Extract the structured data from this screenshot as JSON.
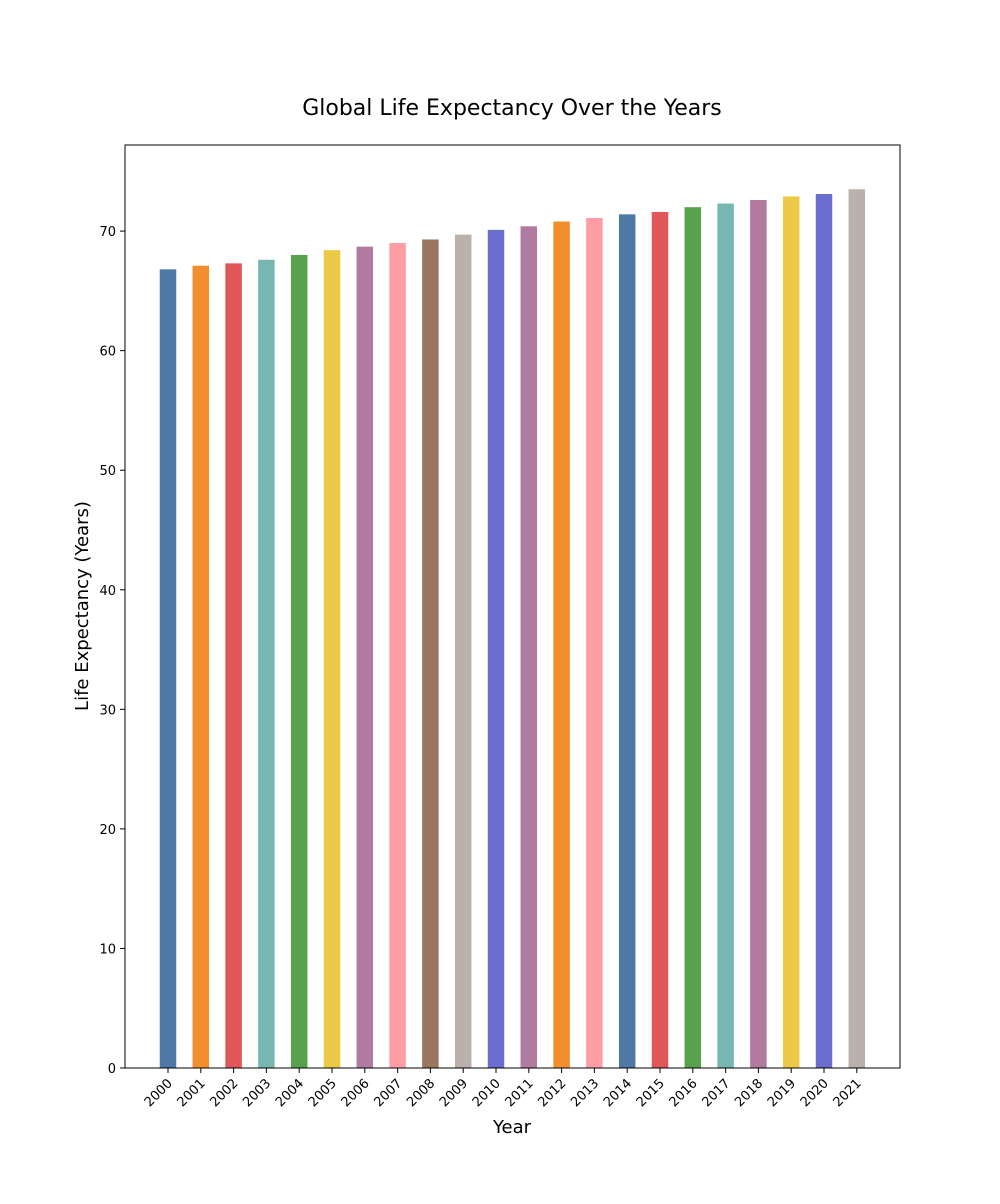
{
  "chart_data": {
    "type": "bar",
    "title": "Global Life Expectancy Over the Years",
    "xlabel": "Year",
    "ylabel": "Life Expectancy (Years)",
    "categories": [
      "2000",
      "2001",
      "2002",
      "2003",
      "2004",
      "2005",
      "2006",
      "2007",
      "2008",
      "2009",
      "2010",
      "2011",
      "2012",
      "2013",
      "2014",
      "2015",
      "2016",
      "2017",
      "2018",
      "2019",
      "2020",
      "2021"
    ],
    "values": [
      66.8,
      67.1,
      67.3,
      67.6,
      68.0,
      68.4,
      68.7,
      69.0,
      69.3,
      69.7,
      70.1,
      70.4,
      70.8,
      71.1,
      71.4,
      71.6,
      72.0,
      72.3,
      72.6,
      72.9,
      73.1,
      73.5
    ],
    "colors": [
      "#4e79a7",
      "#f28e2b",
      "#e15759",
      "#76b7b2",
      "#59a14f",
      "#edc948",
      "#b07aa1",
      "#ff9da7",
      "#9c755f",
      "#bab0ac",
      "#6b6ecf",
      "#b07aa1",
      "#f28e2b",
      "#ff9da7",
      "#4e79a7",
      "#e15759",
      "#59a14f",
      "#76b7b2",
      "#b07aa1",
      "#edc948",
      "#6b6ecf",
      "#bab0ac"
    ],
    "ylim": [
      0,
      77.2
    ],
    "yticks": [
      0,
      10,
      20,
      30,
      40,
      50,
      60,
      70
    ],
    "grid": false,
    "legend": "none"
  }
}
